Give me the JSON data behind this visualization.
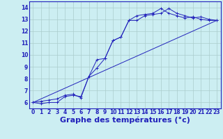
{
  "background_color": "#cceef2",
  "grid_color": "#aacccc",
  "line_color": "#2222bb",
  "marker_color": "#2222bb",
  "xlabel": "Graphe des températures (°c)",
  "xlabel_fontsize": 8,
  "ylim": [
    5.5,
    14.5
  ],
  "xlim": [
    -0.5,
    23.5
  ],
  "yticks": [
    6,
    7,
    8,
    9,
    10,
    11,
    12,
    13,
    14
  ],
  "xtick_labels": [
    "0",
    "1",
    "2",
    "3",
    "4",
    "5",
    "6",
    "7",
    "8",
    "9",
    "10",
    "11",
    "12",
    "13",
    "14",
    "15",
    "16",
    "17",
    "18",
    "19",
    "20",
    "21",
    "22",
    "23"
  ],
  "xtick_positions": [
    0,
    1,
    2,
    3,
    4,
    5,
    6,
    7,
    8,
    9,
    10,
    11,
    12,
    13,
    14,
    15,
    16,
    17,
    18,
    19,
    20,
    21,
    22,
    23
  ],
  "line1_x": [
    0,
    1,
    2,
    3,
    4,
    5,
    6,
    7,
    8,
    9,
    10,
    11,
    12,
    13,
    14,
    15,
    16,
    17,
    18,
    19,
    20,
    21,
    22,
    23
  ],
  "line1_y": [
    6.0,
    5.9,
    6.0,
    6.0,
    6.5,
    6.6,
    6.5,
    8.2,
    9.6,
    9.7,
    11.2,
    11.5,
    12.9,
    12.9,
    13.3,
    13.4,
    13.5,
    13.9,
    13.5,
    13.3,
    13.1,
    13.2,
    13.0,
    12.9
  ],
  "line2_x": [
    0,
    1,
    2,
    3,
    4,
    5,
    6,
    7,
    8,
    9,
    10,
    11,
    12,
    13,
    14,
    15,
    16,
    17,
    18,
    19,
    20,
    21,
    22,
    23
  ],
  "line2_y": [
    6.0,
    6.1,
    6.2,
    6.3,
    6.6,
    6.7,
    6.4,
    8.2,
    8.9,
    9.7,
    11.2,
    11.5,
    12.9,
    13.3,
    13.4,
    13.5,
    13.9,
    13.5,
    13.3,
    13.1,
    13.2,
    13.0,
    12.9,
    12.9
  ],
  "line3_x": [
    0,
    23
  ],
  "line3_y": [
    6.0,
    12.9
  ]
}
